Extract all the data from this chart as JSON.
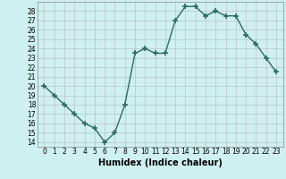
{
  "xlabel": "Humidex (Indice chaleur)",
  "x": [
    0,
    1,
    2,
    3,
    4,
    5,
    6,
    7,
    8,
    9,
    10,
    11,
    12,
    13,
    14,
    15,
    16,
    17,
    18,
    19,
    20,
    21,
    22,
    23
  ],
  "y": [
    20,
    19,
    18,
    17,
    16,
    15.5,
    14,
    15,
    18,
    23.5,
    24,
    23.5,
    23.5,
    27,
    28.5,
    28.5,
    27.5,
    28,
    27.5,
    27.5,
    25.5,
    24.5,
    23,
    21.5
  ],
  "ylim": [
    13.5,
    29.0
  ],
  "yticks": [
    14,
    15,
    16,
    17,
    18,
    19,
    20,
    21,
    22,
    23,
    24,
    25,
    26,
    27,
    28
  ],
  "line_color": "#2e6b5e",
  "bg_color": "#cff0f0",
  "grid_color": "#b8b8b8",
  "marker": "+",
  "markersize": 4,
  "linewidth": 1.0,
  "tick_fontsize": 5.5,
  "xlabel_fontsize": 7.0
}
